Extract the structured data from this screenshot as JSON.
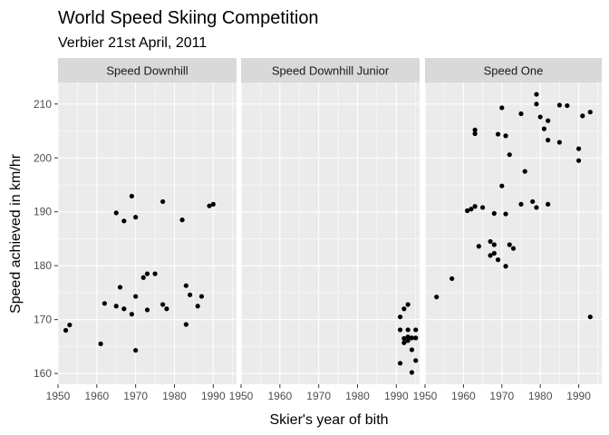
{
  "chart_data": {
    "type": "scatter",
    "title": "World Speed Skiing Competition",
    "subtitle": "Verbier 21st April, 2011",
    "xlabel": "Skier's year of bith",
    "ylabel": "Speed achieved in km/hr",
    "xlim": [
      1950,
      1996
    ],
    "ylim": [
      158,
      214
    ],
    "x_ticks": [
      1950,
      1960,
      1970,
      1980,
      1990
    ],
    "y_ticks": [
      160,
      170,
      180,
      190,
      200,
      210
    ],
    "grid": true,
    "point_color": "#000000",
    "panel_background": "#ebebeb",
    "strip_background": "#d9d9d9",
    "facets": [
      {
        "label": "Speed Downhill",
        "points": [
          [
            1952,
            168.0
          ],
          [
            1953,
            169.0
          ],
          [
            1961,
            165.5
          ],
          [
            1962,
            173.0
          ],
          [
            1965,
            172.5
          ],
          [
            1965,
            189.8
          ],
          [
            1966,
            176.0
          ],
          [
            1967,
            188.3
          ],
          [
            1967,
            172.0
          ],
          [
            1969,
            171.0
          ],
          [
            1969,
            192.9
          ],
          [
            1970,
            189.0
          ],
          [
            1970,
            174.3
          ],
          [
            1970,
            164.3
          ],
          [
            1972,
            177.8
          ],
          [
            1973,
            178.5
          ],
          [
            1973,
            171.8
          ],
          [
            1975,
            178.5
          ],
          [
            1977,
            191.9
          ],
          [
            1977,
            172.8
          ],
          [
            1978,
            172.0
          ],
          [
            1982,
            188.5
          ],
          [
            1983,
            176.3
          ],
          [
            1983,
            169.1
          ],
          [
            1984,
            174.6
          ],
          [
            1986,
            172.5
          ],
          [
            1987,
            174.3
          ],
          [
            1989,
            191.1
          ],
          [
            1990,
            191.4
          ]
        ]
      },
      {
        "label": "Speed Downhill Junior",
        "points": [
          [
            1991,
            170.5
          ],
          [
            1991,
            168.1
          ],
          [
            1991,
            161.9
          ],
          [
            1992,
            172.0
          ],
          [
            1992,
            166.5
          ],
          [
            1992,
            165.7
          ],
          [
            1993,
            172.8
          ],
          [
            1993,
            168.1
          ],
          [
            1993,
            166.8
          ],
          [
            1993,
            166.1
          ],
          [
            1994,
            166.6
          ],
          [
            1994,
            164.4
          ],
          [
            1994,
            160.2
          ],
          [
            1995,
            168.1
          ],
          [
            1995,
            166.6
          ],
          [
            1995,
            162.4
          ]
        ]
      },
      {
        "label": "Speed One",
        "points": [
          [
            1953,
            174.2
          ],
          [
            1957,
            177.6
          ],
          [
            1961,
            190.2
          ],
          [
            1962,
            190.5
          ],
          [
            1963,
            191.0
          ],
          [
            1963,
            205.2
          ],
          [
            1963,
            204.5
          ],
          [
            1964,
            183.6
          ],
          [
            1965,
            190.8
          ],
          [
            1967,
            184.5
          ],
          [
            1967,
            181.9
          ],
          [
            1968,
            189.7
          ],
          [
            1968,
            183.9
          ],
          [
            1968,
            182.3
          ],
          [
            1969,
            204.4
          ],
          [
            1969,
            181.1
          ],
          [
            1970,
            209.3
          ],
          [
            1970,
            194.8
          ],
          [
            1971,
            204.1
          ],
          [
            1971,
            189.6
          ],
          [
            1971,
            179.9
          ],
          [
            1972,
            200.6
          ],
          [
            1972,
            183.9
          ],
          [
            1973,
            183.2
          ],
          [
            1975,
            208.2
          ],
          [
            1975,
            191.4
          ],
          [
            1976,
            197.5
          ],
          [
            1978,
            191.9
          ],
          [
            1979,
            211.8
          ],
          [
            1979,
            210.0
          ],
          [
            1979,
            190.8
          ],
          [
            1980,
            207.6
          ],
          [
            1981,
            205.4
          ],
          [
            1982,
            206.9
          ],
          [
            1982,
            203.3
          ],
          [
            1982,
            191.4
          ],
          [
            1985,
            209.8
          ],
          [
            1985,
            202.9
          ],
          [
            1987,
            209.7
          ],
          [
            1990,
            201.7
          ],
          [
            1990,
            199.5
          ],
          [
            1991,
            207.8
          ],
          [
            1993,
            208.5
          ],
          [
            1993,
            170.5
          ]
        ]
      }
    ]
  }
}
